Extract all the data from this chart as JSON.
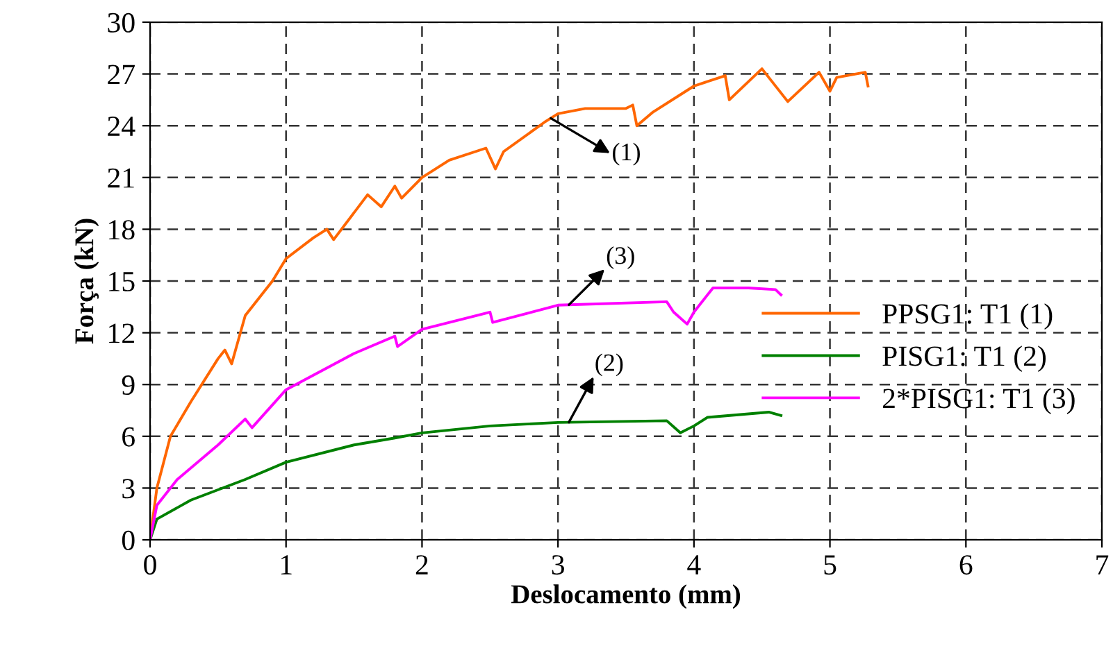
{
  "chart_data": {
    "type": "line",
    "xlabel": "Deslocamento (mm)",
    "ylabel": "Força (kN)",
    "xlim": [
      0,
      7
    ],
    "ylim": [
      0,
      30
    ],
    "xticks": [
      0,
      1,
      2,
      3,
      4,
      5,
      6,
      7
    ],
    "yticks": [
      0,
      3,
      6,
      9,
      12,
      15,
      18,
      21,
      24,
      27,
      30
    ],
    "grid": true,
    "legend": "right",
    "marker": "none",
    "line_style": "solid",
    "series": [
      {
        "name": "PPSG1: T1 (1)",
        "color": "#ff6600",
        "x": [
          0,
          0.05,
          0.15,
          0.3,
          0.5,
          0.55,
          0.6,
          0.7,
          0.9,
          1.0,
          1.2,
          1.3,
          1.35,
          1.6,
          1.7,
          1.8,
          1.85,
          2.0,
          2.2,
          2.47,
          2.54,
          2.6,
          2.9,
          3.0,
          3.2,
          3.5,
          3.55,
          3.58,
          3.7,
          4.0,
          4.23,
          4.26,
          4.5,
          4.69,
          4.92,
          5.0,
          5.05,
          5.26,
          5.28
        ],
        "values": [
          0,
          3,
          6,
          8,
          10.5,
          11,
          10.2,
          13,
          15,
          16.3,
          17.5,
          18,
          17.4,
          20,
          19.3,
          20.5,
          19.8,
          21,
          22,
          22.7,
          21.5,
          22.5,
          24.2,
          24.7,
          25,
          25,
          25.2,
          24,
          24.8,
          26.3,
          26.9,
          25.5,
          27.3,
          25.4,
          27.1,
          26,
          26.8,
          27.1,
          26.3
        ]
      },
      {
        "name": "PISG1: T1 (2)",
        "color": "#008000",
        "x": [
          0,
          0.05,
          0.3,
          0.7,
          1.0,
          1.5,
          1.8,
          2.0,
          2.5,
          3.0,
          3.8,
          3.9,
          4.0,
          4.1,
          4.55,
          4.64
        ],
        "values": [
          0,
          1.2,
          2.3,
          3.5,
          4.5,
          5.5,
          5.9,
          6.2,
          6.6,
          6.8,
          6.9,
          6.2,
          6.6,
          7.1,
          7.4,
          7.2
        ]
      },
      {
        "name": "2*PISG1: T1 (3)",
        "color": "#ff00ff",
        "x": [
          0,
          0.05,
          0.2,
          0.5,
          0.7,
          0.75,
          1.0,
          1.5,
          1.8,
          1.82,
          2.0,
          2.5,
          2.52,
          3.0,
          3.8,
          3.85,
          3.95,
          4.0,
          4.14,
          4.4,
          4.6,
          4.64
        ],
        "values": [
          0,
          2,
          3.5,
          5.5,
          7,
          6.5,
          8.7,
          10.8,
          11.8,
          11.2,
          12.2,
          13.2,
          12.6,
          13.6,
          13.8,
          13.2,
          12.5,
          13.2,
          14.6,
          14.6,
          14.5,
          14.2
        ]
      }
    ],
    "annotations": [
      "(1)",
      "(2)",
      "(3)"
    ]
  }
}
